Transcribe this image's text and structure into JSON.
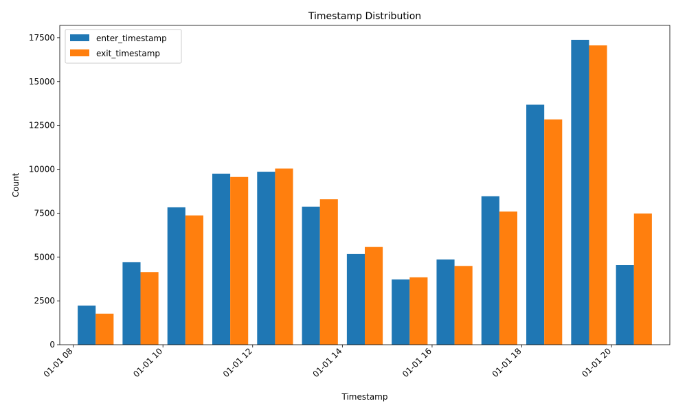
{
  "chart_data": {
    "type": "bar",
    "title": "Timestamp Distribution",
    "xlabel": "Timestamp",
    "ylabel": "Count",
    "x_ticks": [
      "01-01 08",
      "01-01 10",
      "01-01 12",
      "01-01 14",
      "01-01 16",
      "01-01 18",
      "01-01 20"
    ],
    "x_tick_hours": [
      8,
      10,
      12,
      14,
      16,
      18,
      20
    ],
    "bin_start_hours": [
      8,
      9,
      10,
      11,
      12,
      13,
      14,
      15,
      16,
      17,
      18,
      19,
      20
    ],
    "xlim": [
      7.7,
      21.3
    ],
    "ylim": [
      0,
      18200
    ],
    "y_ticks": [
      0,
      2500,
      5000,
      7500,
      10000,
      12500,
      15000,
      17500
    ],
    "y_tick_labels": [
      "0",
      "2500",
      "5000",
      "7500",
      "10000",
      "12500",
      "15000",
      "17500"
    ],
    "series": [
      {
        "name": "enter_timestamp",
        "color": "#1f77b4",
        "values": [
          2230,
          4700,
          7830,
          9750,
          9860,
          7870,
          5170,
          3720,
          4860,
          8460,
          13680,
          17380,
          4540
        ]
      },
      {
        "name": "exit_timestamp",
        "color": "#ff7f0e",
        "values": [
          1770,
          4140,
          7370,
          9560,
          10040,
          8290,
          5570,
          3840,
          4490,
          7590,
          12840,
          17060,
          7480
        ]
      }
    ],
    "legend": "top-left",
    "grid": false
  }
}
